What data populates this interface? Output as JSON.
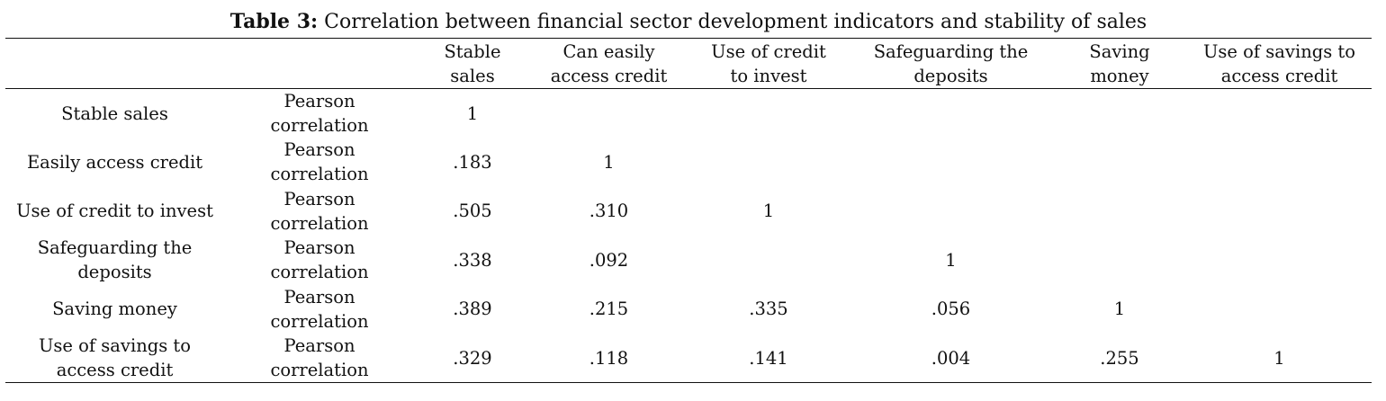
{
  "caption": {
    "label": "Table 3:",
    "text": " Correlation between financial sector development indicators and stability of sales"
  },
  "table": {
    "headers": [
      "",
      "",
      "Stable\nsales",
      "Can easily\naccess credit",
      "Use of credit\nto invest",
      "Safeguarding the\ndeposits",
      "Saving\nmoney",
      "Use of savings to\naccess credit"
    ],
    "rows": [
      [
        "Stable sales",
        "Pearson\ncorrelation",
        "1",
        "",
        "",
        "",
        "",
        ""
      ],
      [
        "Easily access credit",
        "Pearson\ncorrelation",
        ".183",
        "1",
        "",
        "",
        "",
        ""
      ],
      [
        "Use of credit to invest",
        "Pearson\ncorrelation",
        ".505",
        ".310",
        "1",
        "",
        "",
        ""
      ],
      [
        "Safeguarding the\ndeposits",
        "Pearson\ncorrelation",
        ".338",
        ".092",
        "",
        "1",
        "",
        ""
      ],
      [
        "Saving money",
        "Pearson\ncorrelation",
        ".389",
        ".215",
        ".335",
        ".056",
        "1",
        ""
      ],
      [
        "Use of savings to\naccess credit",
        "Pearson\ncorrelation",
        ".329",
        ".118",
        ".141",
        ".004",
        ".255",
        "1"
      ]
    ]
  }
}
